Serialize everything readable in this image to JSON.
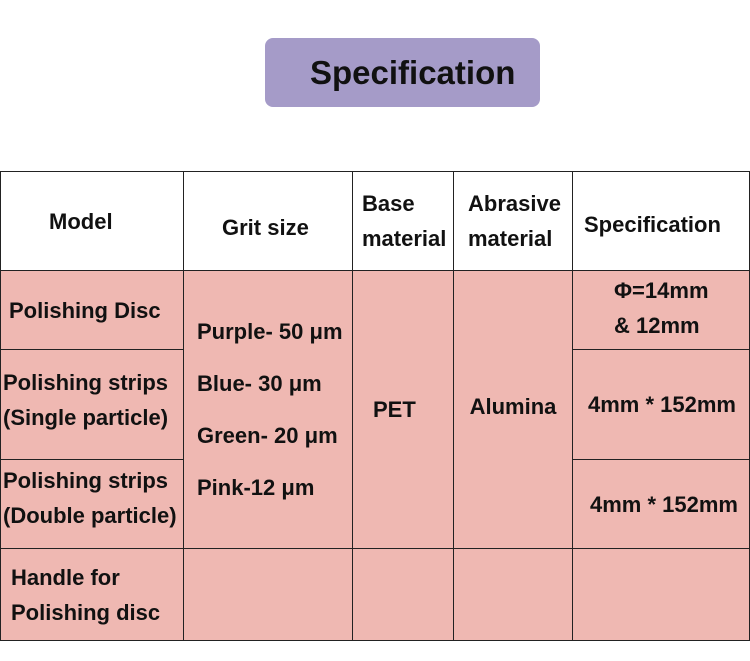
{
  "title": "Specification",
  "colors": {
    "title_badge": "#a59bc8",
    "cell_fill": "#efb8b2",
    "border": "#222222"
  },
  "table": {
    "headers": {
      "model": [
        "Model"
      ],
      "grit_size": [
        "Grit size"
      ],
      "base_material": [
        "Base",
        "material"
      ],
      "abrasive_material": [
        "Abrasive",
        "material"
      ],
      "specification": [
        "Specification"
      ]
    },
    "rows": [
      {
        "model": [
          "Polishing Disc"
        ],
        "specification": [
          "Φ=14mm",
          "& 12mm"
        ]
      },
      {
        "model": [
          "Polishing strips",
          "(Single particle)"
        ],
        "specification": [
          "4mm * 152mm"
        ]
      },
      {
        "model": [
          "Polishing strips",
          "(Double particle)"
        ],
        "specification": [
          "4mm * 152mm"
        ]
      },
      {
        "model": [
          "Handle for",
          "Polishing disc"
        ],
        "specification": []
      }
    ],
    "merged": {
      "grit_size": [
        "Purple- 50 μm",
        "Blue- 30 μm",
        "Green- 20 μm",
        "Pink-12 μm"
      ],
      "base_material": "PET",
      "abrasive_material": "Alumina"
    }
  }
}
